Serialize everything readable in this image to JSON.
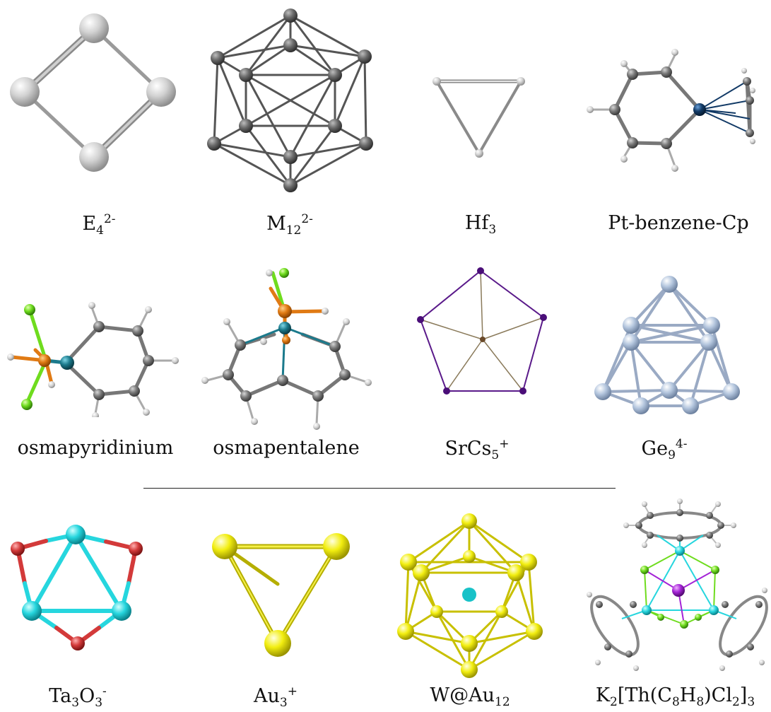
{
  "molecules": [
    {
      "id": "e4",
      "parts": [
        {
          "t": "E",
          "s": ""
        },
        {
          "t": "4",
          "s": "sub"
        },
        {
          "t": "2-",
          "s": "sup"
        }
      ]
    },
    {
      "id": "m12",
      "parts": [
        {
          "t": "M",
          "s": ""
        },
        {
          "t": "12",
          "s": "sub"
        },
        {
          "t": "2-",
          "s": "sup"
        }
      ]
    },
    {
      "id": "hf3",
      "parts": [
        {
          "t": "Hf",
          "s": ""
        },
        {
          "t": "3",
          "s": "sub"
        }
      ]
    },
    {
      "id": "ptbenz",
      "parts": [
        {
          "t": "Pt-benzene-Cp",
          "s": ""
        }
      ]
    },
    {
      "id": "osmapyr",
      "parts": [
        {
          "t": "osmapyridinium",
          "s": ""
        }
      ]
    },
    {
      "id": "osmapent",
      "parts": [
        {
          "t": "osmapentalene",
          "s": ""
        }
      ]
    },
    {
      "id": "srcs5",
      "parts": [
        {
          "t": "SrCs",
          "s": ""
        },
        {
          "t": "5",
          "s": "sub"
        },
        {
          "t": "+",
          "s": "sup"
        }
      ]
    },
    {
      "id": "ge9",
      "parts": [
        {
          "t": "Ge",
          "s": ""
        },
        {
          "t": "9",
          "s": "sub"
        },
        {
          "t": "4-",
          "s": "sup"
        }
      ]
    },
    {
      "id": "ta3o3",
      "parts": [
        {
          "t": "Ta",
          "s": ""
        },
        {
          "t": "3",
          "s": "sub"
        },
        {
          "t": "O",
          "s": ""
        },
        {
          "t": "3",
          "s": "sub"
        },
        {
          "t": "-",
          "s": "sup"
        }
      ]
    },
    {
      "id": "au3",
      "parts": [
        {
          "t": "Au",
          "s": ""
        },
        {
          "t": "3",
          "s": "sub"
        },
        {
          "t": "+",
          "s": "sup"
        }
      ]
    },
    {
      "id": "wau12",
      "parts": [
        {
          "t": "W@Au",
          "s": ""
        },
        {
          "t": "12",
          "s": "sub"
        }
      ]
    },
    {
      "id": "k2th",
      "parts": [
        {
          "t": "K",
          "s": ""
        },
        {
          "t": "2",
          "s": "sub"
        },
        {
          "t": "[Th(C",
          "s": ""
        },
        {
          "t": "8",
          "s": "sub"
        },
        {
          "t": "H",
          "s": ""
        },
        {
          "t": "8",
          "s": "sub"
        },
        {
          "t": ")Cl",
          "s": ""
        },
        {
          "t": "2",
          "s": "sub"
        },
        {
          "t": "]",
          "s": ""
        },
        {
          "t": "3",
          "s": "sub"
        }
      ]
    }
  ],
  "colors": {
    "grey_atom": "#d9d9d9",
    "dark_atom": "#6b6b6b",
    "hydrogen": "#cfcfcf",
    "carbon": "#7a7a7a",
    "osmium": "#1b7a8c",
    "platinum": "#123a66",
    "phosphorus": "#e07a14",
    "chlorine": "#6fdc1e",
    "strontium": "#6a4a2a",
    "cesium": "#5a1a8a",
    "germanium": "#b4c6de",
    "tantalum": "#26d6de",
    "oxygen": "#d33a3a",
    "gold": "#f2ee10",
    "tungsten": "#18c2c8",
    "thorium": "#20c8d0",
    "potassium": "#a424d6"
  }
}
